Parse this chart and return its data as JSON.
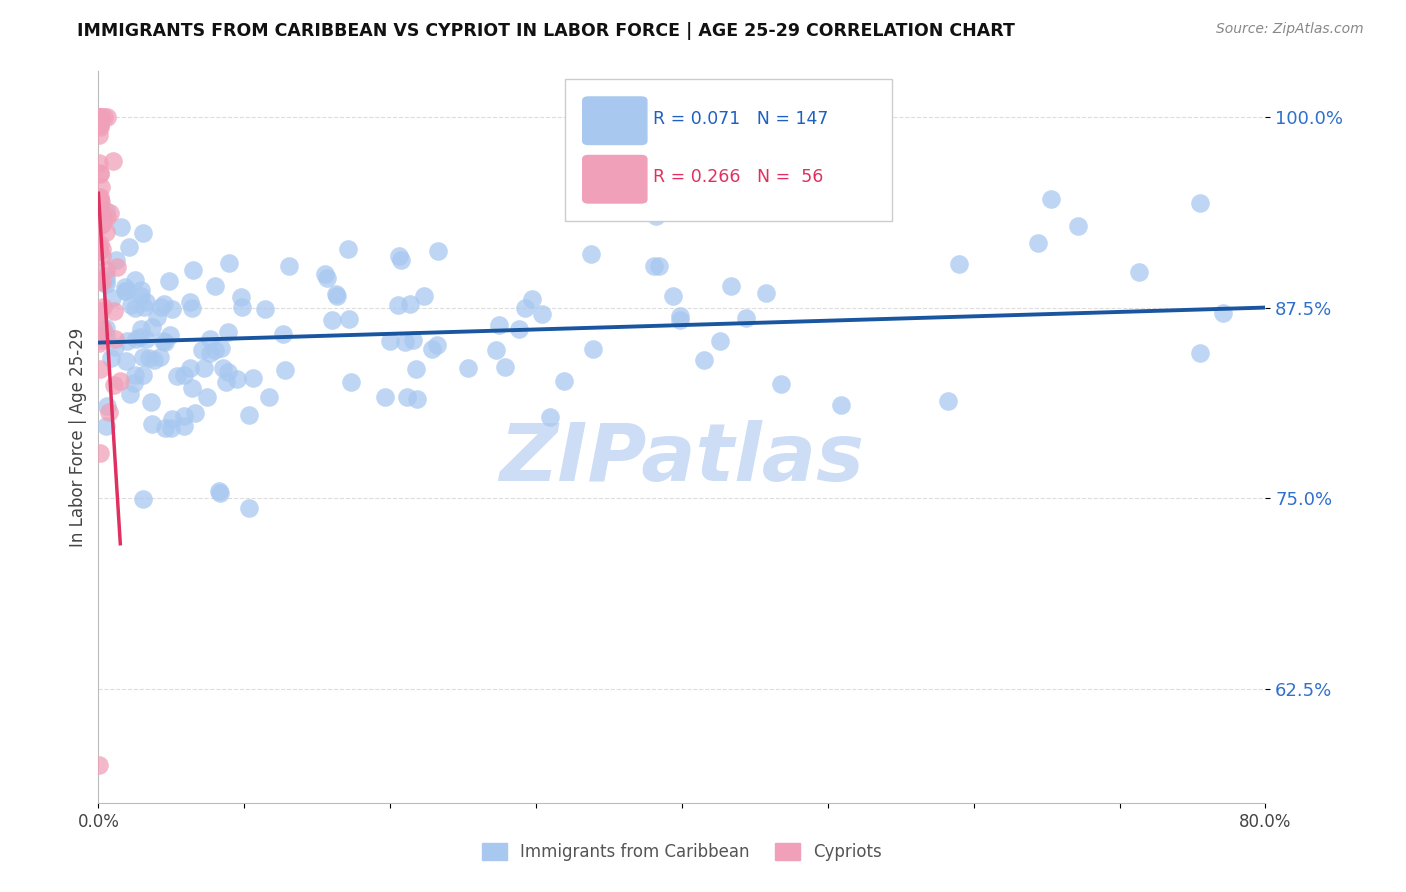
{
  "title": "IMMIGRANTS FROM CARIBBEAN VS CYPRIOT IN LABOR FORCE | AGE 25-29 CORRELATION CHART",
  "source": "Source: ZipAtlas.com",
  "ylabel": "In Labor Force | Age 25-29",
  "xlim": [
    0.0,
    0.8
  ],
  "ylim": [
    0.55,
    1.03
  ],
  "yticks": [
    0.625,
    0.75,
    0.875,
    1.0
  ],
  "ytick_labels": [
    "62.5%",
    "75.0%",
    "87.5%",
    "100.0%"
  ],
  "xticks": [
    0.0,
    0.1,
    0.2,
    0.3,
    0.4,
    0.5,
    0.6,
    0.7,
    0.8
  ],
  "xtick_labels": [
    "0.0%",
    "",
    "",
    "",
    "",
    "",
    "",
    "",
    "80.0%"
  ],
  "caribbean_R": 0.071,
  "caribbean_N": 147,
  "cypriot_R": 0.266,
  "cypriot_N": 56,
  "caribbean_color": "#a8c8f0",
  "cypriot_color": "#f0a0b8",
  "trend_caribbean_color": "#1a55a0",
  "trend_cypriot_color": "#e03060",
  "watermark": "ZIPatlas",
  "watermark_color": "#ccddf5",
  "legend_carib_color": "#2060c0",
  "legend_cypr_color": "#e03060",
  "background_color": "#ffffff",
  "grid_color": "#dddddd"
}
